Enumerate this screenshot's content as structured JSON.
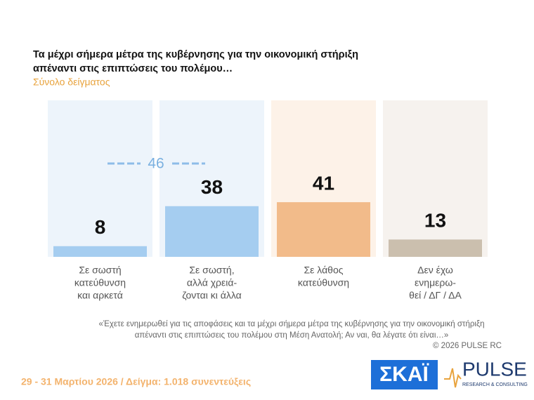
{
  "chart_data": {
    "type": "bar",
    "title": [
      "Τα μέχρι σήμερα μέτρα της κυβέρνησης για την οικονομική στήριξη",
      "απέναντι στις επιπτώσεις του πολέμου…"
    ],
    "subtitle": "Σύνολο δείγματος",
    "categories": [
      [
        "Σε σωστή",
        "κατεύθυνση",
        "και αρκετά"
      ],
      [
        "Σε σωστή,",
        "αλλά χρειά-",
        "ζονται κι άλλα"
      ],
      [
        "Σε λάθος",
        "κατεύθυνση"
      ],
      [
        "Δεν έχω",
        "ενημερω-",
        "θεί / ΔΓ / ΔΑ"
      ]
    ],
    "values": [
      8,
      38,
      41,
      13
    ],
    "colors": [
      "#a5cdf0",
      "#a5cdf0",
      "#f2bb8a",
      "#cbbfae"
    ],
    "annotation": 46
  },
  "question": [
    "«Έχετε ενημερωθεί για τις αποφάσεις και τα μέχρι σήμερα  μέτρα της κυβέρνησης για την οικονομική στήριξη",
    "απέναντι στις επιπτώσεις του πολέμου στη Μέση Ανατολή; Αν ναι, θα λέγατε ότι είναι…»"
  ],
  "copyright": "©  2026  PULSE RC",
  "footer": "29 - 31  Μαρτίου 2026  /  Δείγμα:  1.018 συνεντεύξεις",
  "logos": {
    "skai": "ΣΚΑΪ",
    "pulse": "PULSE",
    "pulse_sub": "RESEARCH & CONSULTING"
  }
}
